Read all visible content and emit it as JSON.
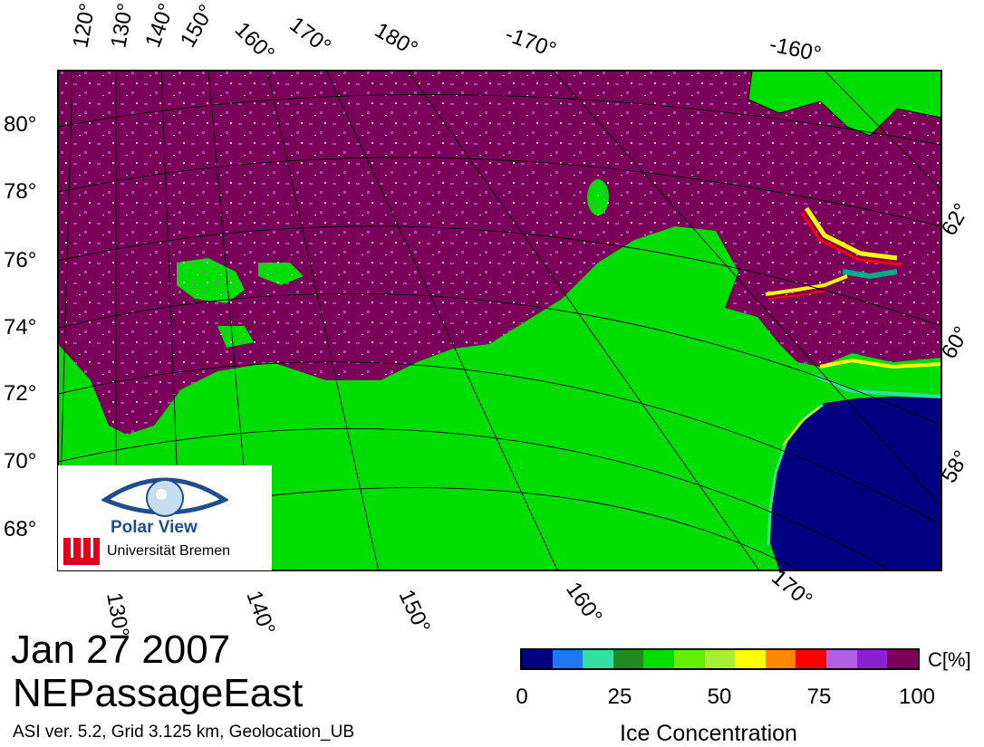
{
  "map": {
    "date": "Jan 27 2007",
    "region": "NEPassageEast",
    "info": "ASI ver. 5.2,  Grid 3.125 km, Geolocation_UB",
    "top_longitude_labels": [
      "120°",
      "130°",
      "140°",
      "150°",
      "160°",
      "170°",
      "180°",
      "-170°",
      "-160°"
    ],
    "bottom_longitude_labels": [
      "130°",
      "140°",
      "150°",
      "160°",
      "170°"
    ],
    "left_latitude_labels": [
      "80°",
      "78°",
      "76°",
      "74°",
      "72°",
      "70°",
      "68°"
    ],
    "right_latitude_labels": [
      "62°",
      "60°",
      "58°"
    ],
    "colors": {
      "ice_high": "#7a0059",
      "ice_mid": "#a040d0",
      "open_water": "#00dd00",
      "land_mask": "#000080",
      "frame": "#000000"
    }
  },
  "colorbar": {
    "unit": "C[%]",
    "title": "Ice Concentration",
    "ticks": [
      "0",
      "25",
      "50",
      "75",
      "100"
    ],
    "tick_values": [
      0,
      25,
      50,
      75,
      100
    ],
    "segments": [
      "#000080",
      "#1e78f0",
      "#33e0a0",
      "#228822",
      "#00dd00",
      "#66ee00",
      "#aaee33",
      "#ffff00",
      "#ff8800",
      "#ff0000",
      "#b060e0",
      "#8a20d0",
      "#7a0059"
    ]
  },
  "logo": {
    "brand": "Polar View",
    "university": "Universität Bremen"
  }
}
